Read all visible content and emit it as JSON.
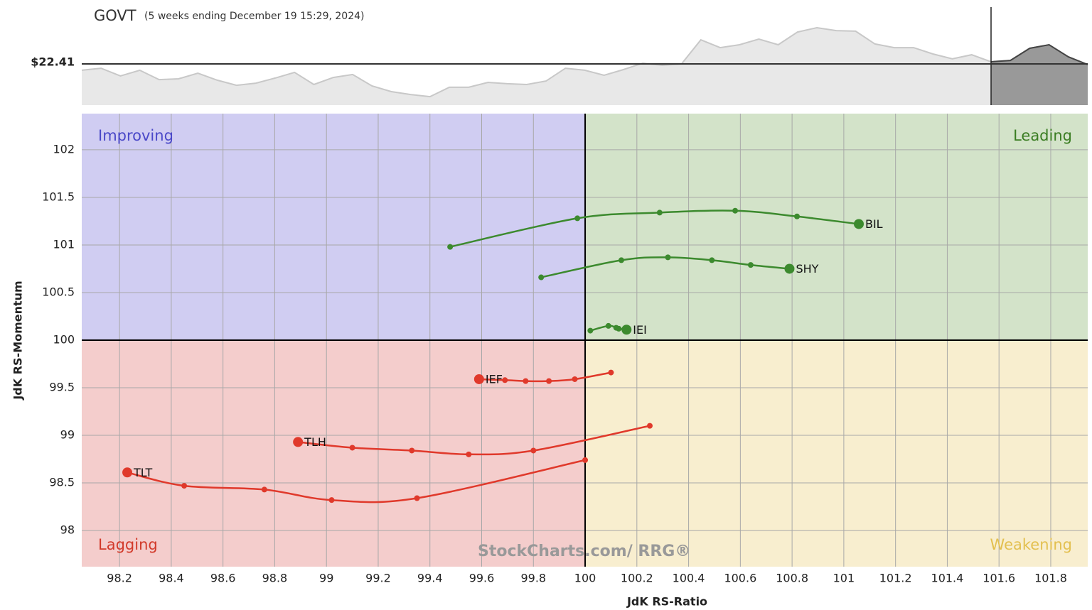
{
  "chart_data": [
    {
      "type": "area",
      "title": "GOVT",
      "subtitle": "(5 weeks ending December 19 15:29, 2024)",
      "values": [
        22.378,
        22.388,
        22.349,
        22.378,
        22.33,
        22.334,
        22.363,
        22.327,
        22.301,
        22.312,
        22.338,
        22.367,
        22.305,
        22.341,
        22.356,
        22.298,
        22.269,
        22.254,
        22.243,
        22.291,
        22.291,
        22.316,
        22.309,
        22.305,
        22.323,
        22.388,
        22.378,
        22.352,
        22.381,
        22.414,
        22.403,
        22.41,
        22.533,
        22.493,
        22.508,
        22.537,
        22.508,
        22.573,
        22.595,
        22.58,
        22.577,
        22.512,
        22.493,
        22.493,
        22.461,
        22.436,
        22.457,
        22.421,
        22.428,
        22.49,
        22.508,
        22.446,
        22.407
      ],
      "ylim": [
        22.2,
        22.7
      ],
      "color": "#e8e8e8",
      "reference": {
        "value": 22.41,
        "label": "$22.41"
      }
    },
    {
      "type": "rrg",
      "x_label": "JdK RS-Ratio",
      "y_label": "JdK RS-Momentum",
      "xlim": [
        98.054,
        101.943
      ],
      "ylim": [
        97.62,
        102.38
      ],
      "center": 100,
      "xticks": [
        98.2,
        98.4,
        98.6,
        98.8,
        99,
        99.2,
        99.4,
        99.6,
        99.8,
        100,
        100.2,
        100.4,
        100.6,
        100.8,
        101,
        101.2,
        101.4,
        101.6,
        101.8
      ],
      "yticks": [
        98,
        98.5,
        99,
        99.5,
        100,
        100.5,
        101,
        101.5,
        102
      ],
      "grid": true,
      "quadrant_labels": {
        "top_left": "Improving",
        "top_right": "Leading",
        "bottom_left": "Lagging",
        "bottom_right": "Weakening"
      },
      "watermark": "StockCharts.com/ RRG®",
      "series": [
        {
          "name": "BIL",
          "color": "#3c8a2e",
          "x": [
            99.478,
            99.97,
            100.288,
            100.58,
            100.819,
            101.058
          ],
          "values": [
            100.98,
            101.28,
            101.34,
            101.36,
            101.3,
            101.22
          ]
        },
        {
          "name": "SHY",
          "color": "#3c8a2e",
          "x": [
            99.83,
            100.14,
            100.32,
            100.49,
            100.64,
            100.79
          ],
          "values": [
            100.66,
            100.84,
            100.87,
            100.84,
            100.79,
            100.75
          ]
        },
        {
          "name": "IEI",
          "color": "#3c8a2e",
          "x": [
            100.02,
            100.09,
            100.12,
            100.13,
            100.16
          ],
          "values": [
            100.1,
            100.15,
            100.13,
            100.12,
            100.11
          ]
        },
        {
          "name": "IEF",
          "color": "#e0392b",
          "x": [
            100.1,
            99.96,
            99.86,
            99.77,
            99.69,
            99.59
          ],
          "values": [
            99.66,
            99.59,
            99.57,
            99.57,
            99.58,
            99.59
          ]
        },
        {
          "name": "TLH",
          "color": "#e0392b",
          "x": [
            100.25,
            99.8,
            99.55,
            99.33,
            99.1,
            98.89
          ],
          "values": [
            99.1,
            98.84,
            98.8,
            98.84,
            98.87,
            98.93
          ]
        },
        {
          "name": "TLT",
          "color": "#e0392b",
          "x": [
            100.0,
            99.35,
            99.02,
            98.76,
            98.45,
            98.23
          ],
          "values": [
            98.74,
            98.34,
            98.32,
            98.43,
            98.47,
            98.61
          ]
        }
      ]
    }
  ]
}
